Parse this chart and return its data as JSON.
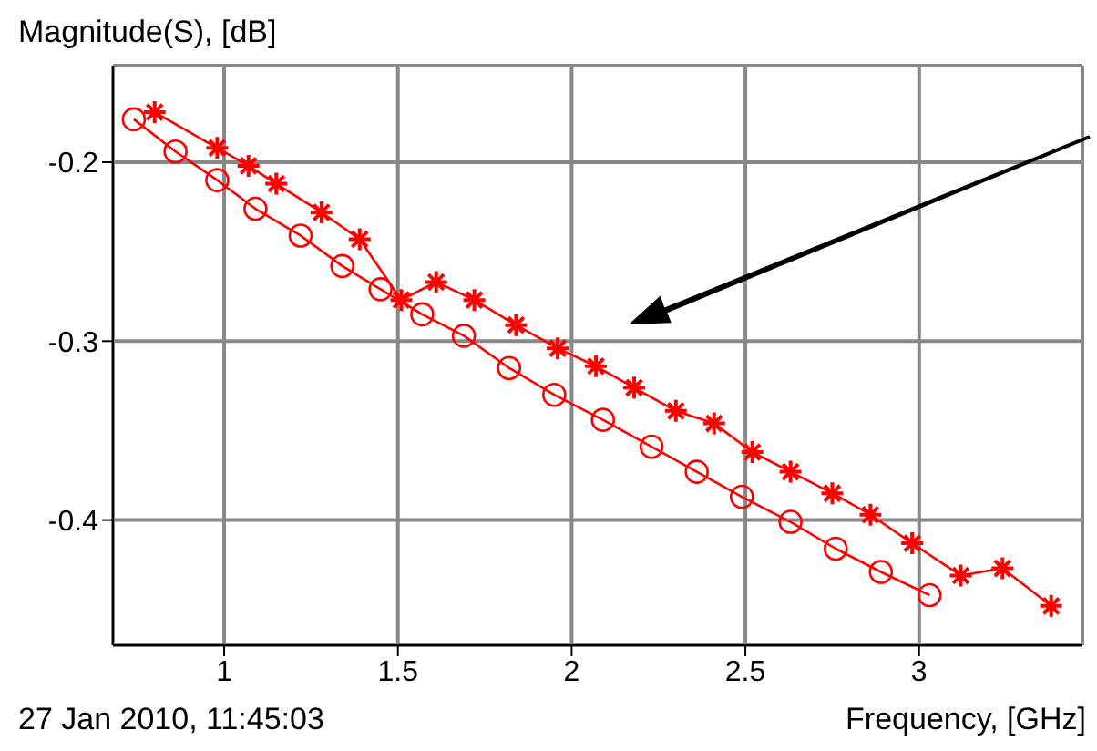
{
  "chart_data": {
    "type": "line",
    "ylabel": "Magnitude(S), [dB]",
    "xlabel": "Frequency, [GHz]",
    "annotations": [
      "27 Jan 2010, 11:45:03"
    ],
    "xlim": [
      0.68,
      3.47
    ],
    "xticks": [
      1,
      1.5,
      2,
      2.5,
      3
    ],
    "ylim": [
      -0.47,
      -0.146
    ],
    "yticks": [
      -0.2,
      -0.3,
      -0.4
    ],
    "grid": true,
    "series": [
      {
        "color": "#ff0000",
        "marker": "circle",
        "x": [
          0.74,
          0.86,
          0.98,
          1.09,
          1.22,
          1.34,
          1.45,
          1.57,
          1.69,
          1.82,
          1.95,
          2.09,
          2.23,
          2.36,
          2.49,
          2.63,
          2.76,
          2.89,
          3.03
        ],
        "values": [
          -0.176,
          -0.194,
          -0.21,
          -0.226,
          -0.241,
          -0.258,
          -0.271,
          -0.285,
          -0.297,
          -0.315,
          -0.33,
          -0.344,
          -0.359,
          -0.373,
          -0.387,
          -0.401,
          -0.416,
          -0.429,
          -0.442
        ]
      },
      {
        "color": "#ff0000",
        "marker": "cross",
        "x": [
          0.8,
          0.98,
          1.07,
          1.15,
          1.28,
          1.39,
          1.51,
          1.61,
          1.72,
          1.84,
          1.96,
          2.07,
          2.18,
          2.3,
          2.41,
          2.52,
          2.63,
          2.75,
          2.86,
          2.98,
          3.12,
          3.24,
          3.38
        ],
        "values": [
          -0.172,
          -0.192,
          -0.202,
          -0.212,
          -0.228,
          -0.243,
          -0.277,
          -0.267,
          -0.277,
          -0.291,
          -0.304,
          -0.314,
          -0.326,
          -0.339,
          -0.346,
          -0.362,
          -0.373,
          -0.385,
          -0.397,
          -0.413,
          -0.431,
          -0.427,
          -0.448
        ]
      }
    ]
  }
}
